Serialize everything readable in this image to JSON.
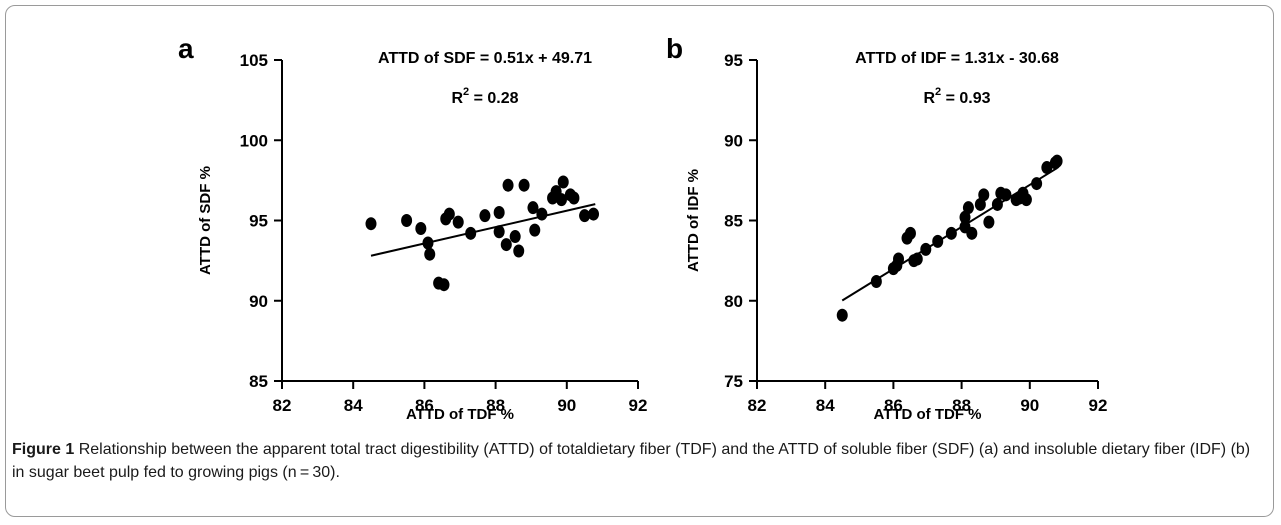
{
  "caption": {
    "label": "Figure 1",
    "text": "Relationship between the apparent total tract digestibility (ATTD) of totaldietary fiber (TDF) and the ATTD of soluble fiber (SDF) (a) and insoluble dietary fiber (IDF) (b) in sugar beet pulp fed to growing pigs (n = 30)."
  },
  "chart_data": [
    {
      "type": "scatter",
      "panel": "a",
      "equation": "ATTD of SDF = 0.51x + 49.71",
      "r2_label": "R",
      "r2_sup": "2",
      "r2_value": " = 0.28",
      "xlabel": "ATTD of TDF %",
      "ylabel": "ATTD of SDF %",
      "xlim": [
        82,
        92
      ],
      "ylim": [
        85,
        105
      ],
      "xticks": [
        82,
        84,
        86,
        88,
        90,
        92
      ],
      "yticks": [
        85,
        90,
        95,
        100,
        105
      ],
      "fit": {
        "slope": 0.51,
        "intercept": 49.71,
        "x_range": [
          84.5,
          90.8
        ]
      },
      "points": [
        [
          84.5,
          94.8
        ],
        [
          85.5,
          95.0
        ],
        [
          85.9,
          94.5
        ],
        [
          86.1,
          93.6
        ],
        [
          86.15,
          92.9
        ],
        [
          86.4,
          91.1
        ],
        [
          86.55,
          91.0
        ],
        [
          86.6,
          95.1
        ],
        [
          86.7,
          95.4
        ],
        [
          86.95,
          94.9
        ],
        [
          87.3,
          94.2
        ],
        [
          87.7,
          95.3
        ],
        [
          88.1,
          95.5
        ],
        [
          88.1,
          94.3
        ],
        [
          88.3,
          93.5
        ],
        [
          88.35,
          97.2
        ],
        [
          88.55,
          94.0
        ],
        [
          88.65,
          93.1
        ],
        [
          88.8,
          97.2
        ],
        [
          89.05,
          95.8
        ],
        [
          89.1,
          94.4
        ],
        [
          89.3,
          95.4
        ],
        [
          89.6,
          96.4
        ],
        [
          89.7,
          96.8
        ],
        [
          89.85,
          96.3
        ],
        [
          89.9,
          97.4
        ],
        [
          90.1,
          96.6
        ],
        [
          90.2,
          96.4
        ],
        [
          90.5,
          95.3
        ],
        [
          90.75,
          95.4
        ]
      ]
    },
    {
      "type": "scatter",
      "panel": "b",
      "equation": "ATTD of IDF = 1.31x - 30.68",
      "r2_label": "R",
      "r2_sup": "2",
      "r2_value": " = 0.93",
      "xlabel": "ATTD of TDF %",
      "ylabel": "ATTD of IDF %",
      "xlim": [
        82,
        92
      ],
      "ylim": [
        75,
        95
      ],
      "xticks": [
        82,
        84,
        86,
        88,
        90,
        92
      ],
      "yticks": [
        75,
        80,
        85,
        90,
        95
      ],
      "fit": {
        "slope": 1.31,
        "intercept": -30.68,
        "x_range": [
          84.5,
          90.8
        ]
      },
      "points": [
        [
          84.5,
          79.1
        ],
        [
          85.5,
          81.2
        ],
        [
          86.0,
          82.0
        ],
        [
          86.1,
          82.2
        ],
        [
          86.15,
          82.6
        ],
        [
          86.4,
          83.9
        ],
        [
          86.5,
          84.2
        ],
        [
          86.6,
          82.5
        ],
        [
          86.7,
          82.6
        ],
        [
          86.95,
          83.2
        ],
        [
          87.3,
          83.7
        ],
        [
          87.7,
          84.2
        ],
        [
          88.1,
          84.6
        ],
        [
          88.1,
          85.2
        ],
        [
          88.2,
          85.8
        ],
        [
          88.3,
          84.2
        ],
        [
          88.55,
          86.0
        ],
        [
          88.65,
          86.6
        ],
        [
          88.8,
          84.9
        ],
        [
          89.05,
          86.0
        ],
        [
          89.15,
          86.7
        ],
        [
          89.3,
          86.6
        ],
        [
          89.6,
          86.3
        ],
        [
          89.7,
          86.4
        ],
        [
          89.8,
          86.7
        ],
        [
          89.9,
          86.3
        ],
        [
          90.2,
          87.3
        ],
        [
          90.5,
          88.3
        ],
        [
          90.75,
          88.6
        ],
        [
          90.8,
          88.7
        ]
      ]
    }
  ]
}
